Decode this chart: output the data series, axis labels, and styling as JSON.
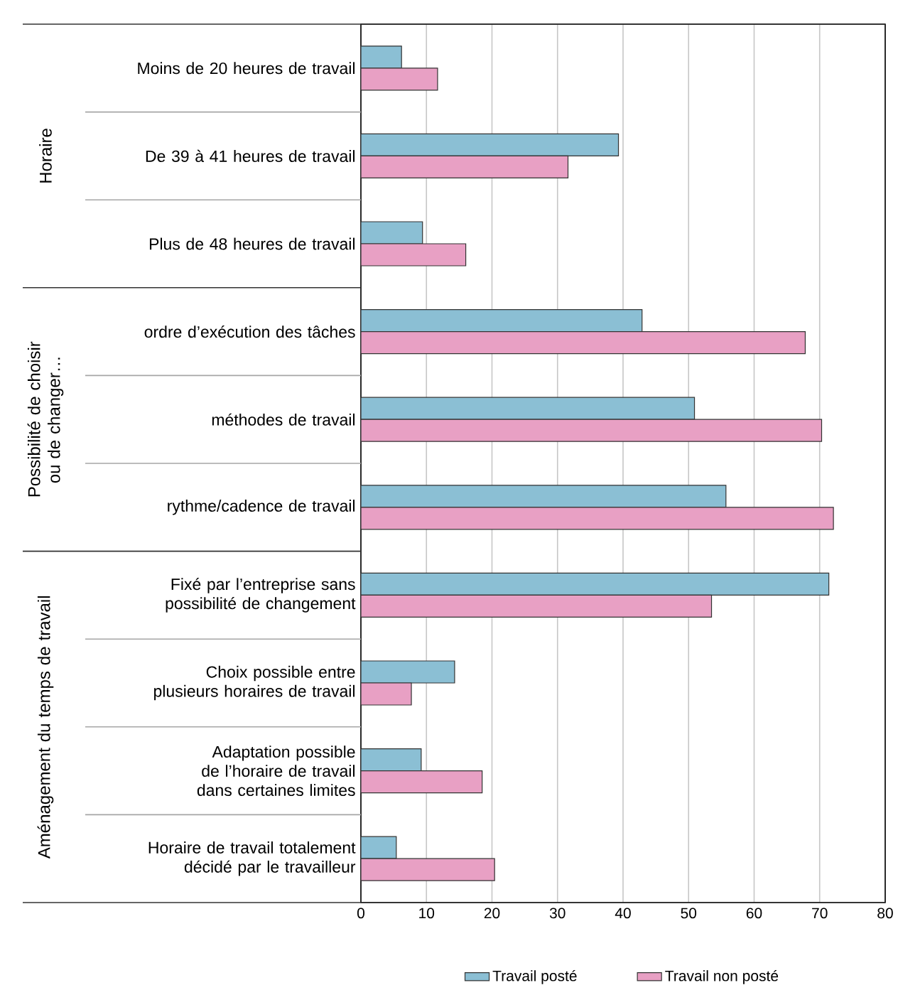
{
  "chart_data": {
    "type": "bar",
    "orientation": "horizontal",
    "categories": [
      "Moins de 20 heures de travail",
      "De 39 à 41 heures de travail",
      "Plus de 48 heures de travail",
      "ordre d’exécution des tâches",
      "méthodes de travail",
      "rythme/cadence de travail",
      "Fixé par l’entreprise sans possibilité de changement",
      "Choix possible entre plusieurs horaires de travail",
      "Adaptation possible de l’horaire de travail dans certaines limites",
      "Horaire de travail totalement décidé par le travailleur"
    ],
    "series": [
      {
        "name": "Travail posté",
        "color": "#8bbfd4",
        "values": [
          6.2,
          39.3,
          9.4,
          42.9,
          50.9,
          55.7,
          71.4,
          14.3,
          9.2,
          5.4
        ]
      },
      {
        "name": "Travail non posté",
        "color": "#e8a0c4",
        "values": [
          11.7,
          31.6,
          16.0,
          67.8,
          70.3,
          72.1,
          53.5,
          7.7,
          18.5,
          20.4
        ]
      }
    ],
    "annotations": [
      "Horaire",
      "Possibilité de choisir ou de changer…",
      "Aménagement du temps de travail"
    ],
    "xlim": [
      0,
      80
    ],
    "xticks": [
      0,
      10,
      20,
      30,
      40,
      50,
      60,
      70,
      80
    ],
    "grid": "x",
    "legend": "bottom"
  }
}
